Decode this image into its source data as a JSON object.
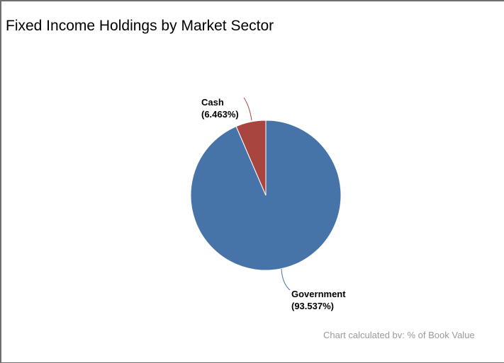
{
  "title": "Fixed Income Holdings by Market Sector",
  "footnote": "Chart calculated bv: % of Book Value",
  "colors": {
    "government": "#4674a9",
    "cash": "#a8453f",
    "border": "#6f6f6f",
    "footnote": "#9a9a9a"
  },
  "chart_data": {
    "type": "pie",
    "title": "Fixed Income Holdings by Market Sector",
    "slices": [
      {
        "name": "Government",
        "value": 93.537,
        "label": "Government",
        "value_label": "(93.537%)",
        "color": "#4674a9"
      },
      {
        "name": "Cash",
        "value": 6.463,
        "label": "Cash",
        "value_label": "(6.463%)",
        "color": "#a8453f"
      }
    ],
    "unit": "%",
    "legend": "none"
  }
}
